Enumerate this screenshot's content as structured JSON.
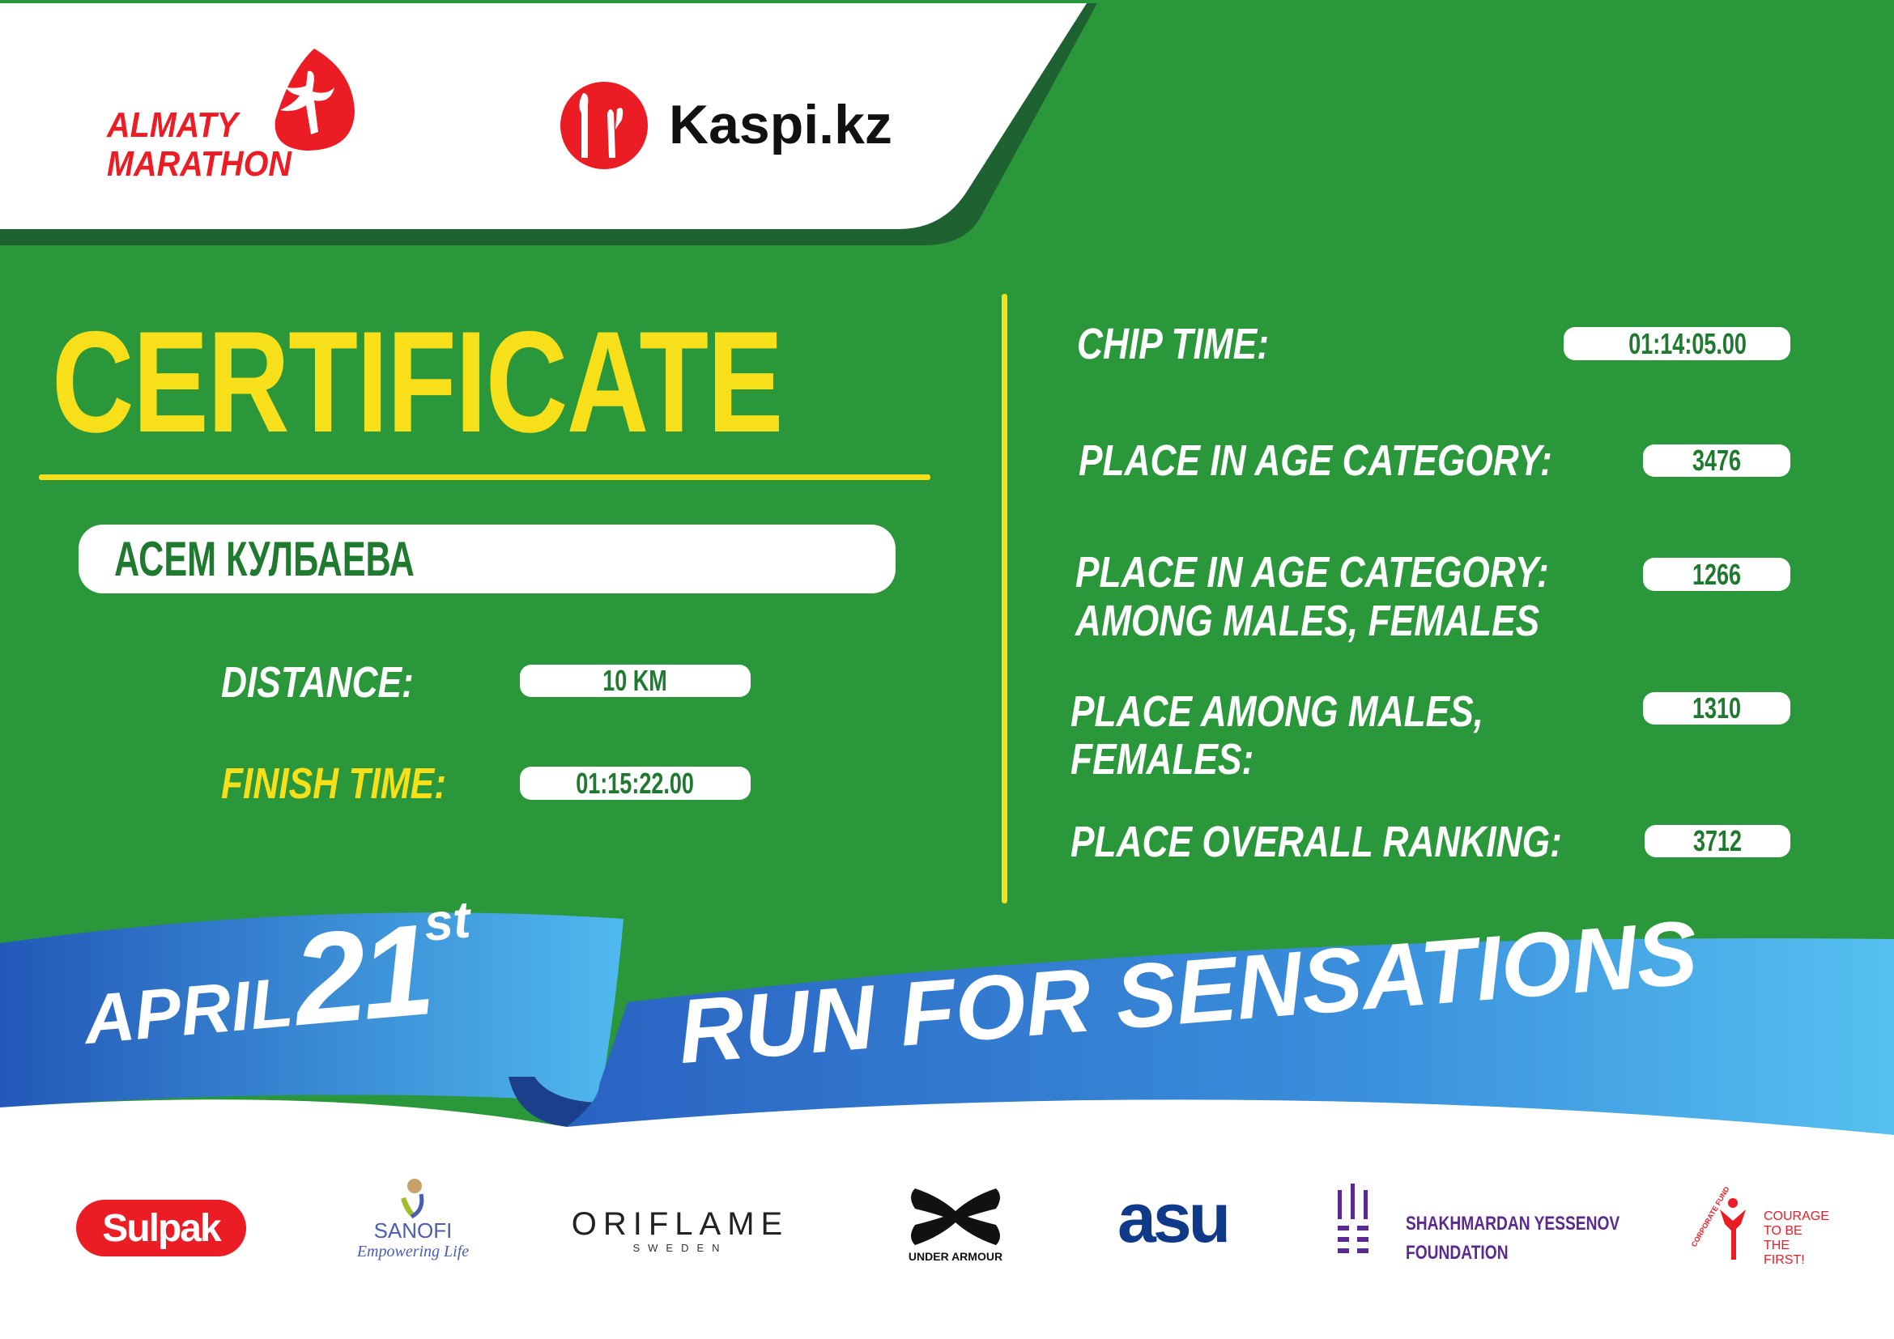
{
  "header": {
    "event_logo_text": [
      "ALMATY",
      "MARATHON"
    ],
    "sponsor_logo_text": "Kaspi.kz"
  },
  "certificate": {
    "title": "CERTIFICATE",
    "participant_name": "АСЕМ КУЛБАЕВА",
    "distance_label": "DISTANCE:",
    "distance_value": "10 KM",
    "finish_time_label": "FINISH TIME:",
    "finish_time_value": "01:15:22.00"
  },
  "results": {
    "chip_time_label": "CHIP TIME:",
    "chip_time_value": "01:14:05.00",
    "age_place_label": "PLACE IN AGE CATEGORY:",
    "age_place_value": "3476",
    "age_gender_place_label_1": "PLACE IN AGE CATEGORY:",
    "age_gender_place_label_2": "AMONG MALES, FEMALES",
    "age_gender_place_value": "1266",
    "gender_place_label_1": "PLACE AMONG MALES,",
    "gender_place_label_2": "FEMALES:",
    "gender_place_value": "1310",
    "overall_label": "PLACE OVERALL RANKING:",
    "overall_value": "3712"
  },
  "banner": {
    "month": "APRIL",
    "day": "21",
    "suffix": "st",
    "slogan": "RUN FOR SENSATIONS"
  },
  "sponsors": {
    "sulpak": "Sulpak",
    "sanofi": "SANOFI",
    "sanofi_tagline": "Empowering Life",
    "oriflame": "ORIFLAME",
    "oriflame_sub": "SWEDEN",
    "under_armour": "UNDER ARMOUR",
    "asu": "asu",
    "yessenov_1": "SHAKHMARDAN YESSENOV",
    "yessenov_2": "FOUNDATION",
    "courage_arc": "CORPORATE FUND",
    "courage_1": "COURAGE",
    "courage_2": "TO BE",
    "courage_3": "THE FIRST!"
  },
  "colors": {
    "green": "#2a973a",
    "dark_green": "#1e6232",
    "yellow": "#f7e01a",
    "red": "#ec1c24",
    "blue": "#2f7fd0",
    "light_blue": "#4fb9ee"
  }
}
